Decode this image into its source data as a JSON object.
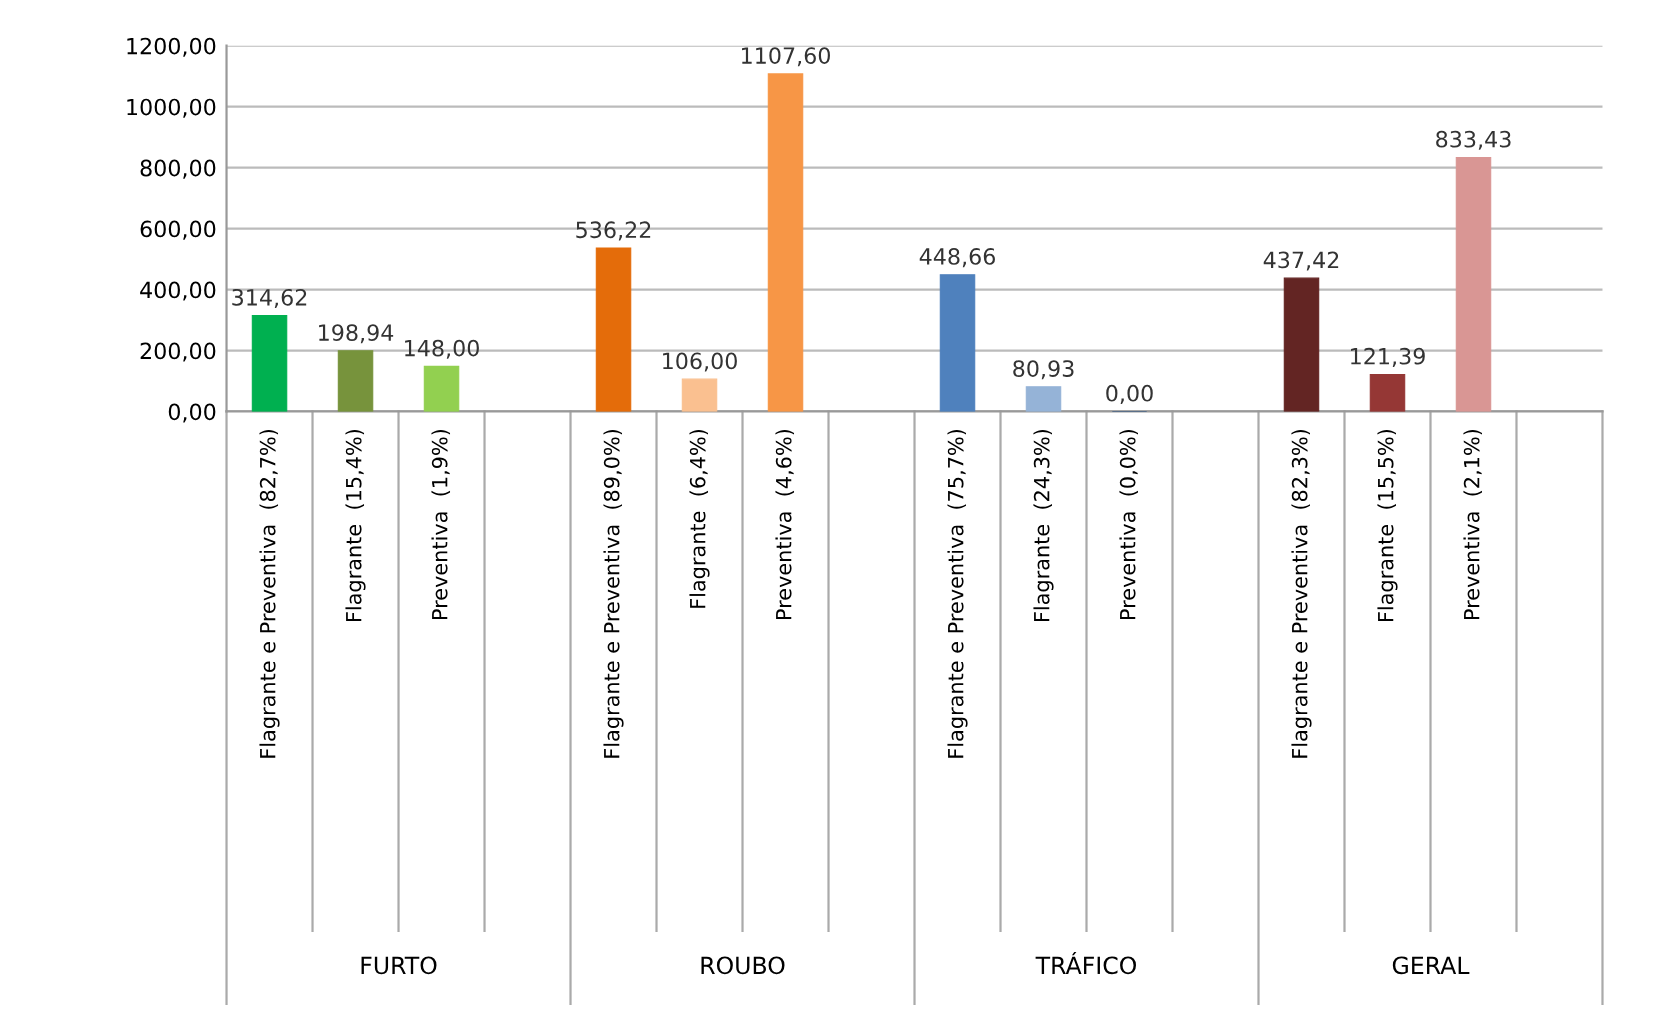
{
  "chart_data": {
    "type": "bar",
    "categories": [
      "Flagrante e Preventiva  (82,7%)",
      "Flagrante  (15,4%)",
      "Preventiva  (1,9%)",
      null,
      "Flagrante e Preventiva  (89,0%)",
      "Flagrante  (6,4%)",
      "Preventiva  (4,6%)",
      null,
      "Flagrante e Preventiva  (75,7%)",
      "Flagrante  (24,3%)",
      "Preventiva  (0,0%)",
      null,
      "Flagrante e Preventiva  (82,3%)",
      "Flagrante  (15,5%)",
      "Preventiva  (2,1%)",
      null
    ],
    "values": [
      314.62,
      198.94,
      148.0,
      null,
      536.22,
      106.0,
      1107.6,
      null,
      448.66,
      80.93,
      0.0,
      null,
      437.42,
      121.39,
      833.43,
      null
    ],
    "value_labels": [
      "314,62",
      "198,94",
      "148,00",
      null,
      "536,22",
      "106,00",
      "1107,60",
      null,
      "448,66",
      "80,93",
      "0,00",
      null,
      "437,42",
      "121,39",
      "833,43",
      null
    ],
    "colors": [
      "#00b050",
      "#77933c",
      "#92d050",
      "#ffffff",
      "#e46c0a",
      "#fac090",
      "#f79646",
      "#ffffff",
      "#4f81bd",
      "#95b3d7",
      "#1f497d",
      "#ffffff",
      "#632523",
      "#953735",
      "#d99694",
      "#ffffff"
    ],
    "annotations": [
      "FURTO",
      "ROUBO",
      "TRÁFICO",
      "GERAL"
    ],
    "ylim": [
      0,
      1200
    ],
    "yticks": [
      {
        "value": 0,
        "label": "0,00"
      },
      {
        "value": 200,
        "label": "200,00"
      },
      {
        "value": 400,
        "label": "400,00"
      },
      {
        "value": 600,
        "label": "600,00"
      },
      {
        "value": 800,
        "label": "800,00"
      },
      {
        "value": 1000,
        "label": "1000,00"
      },
      {
        "value": 1200,
        "label": "1200,00"
      }
    ],
    "grid": "y",
    "legend": false
  }
}
